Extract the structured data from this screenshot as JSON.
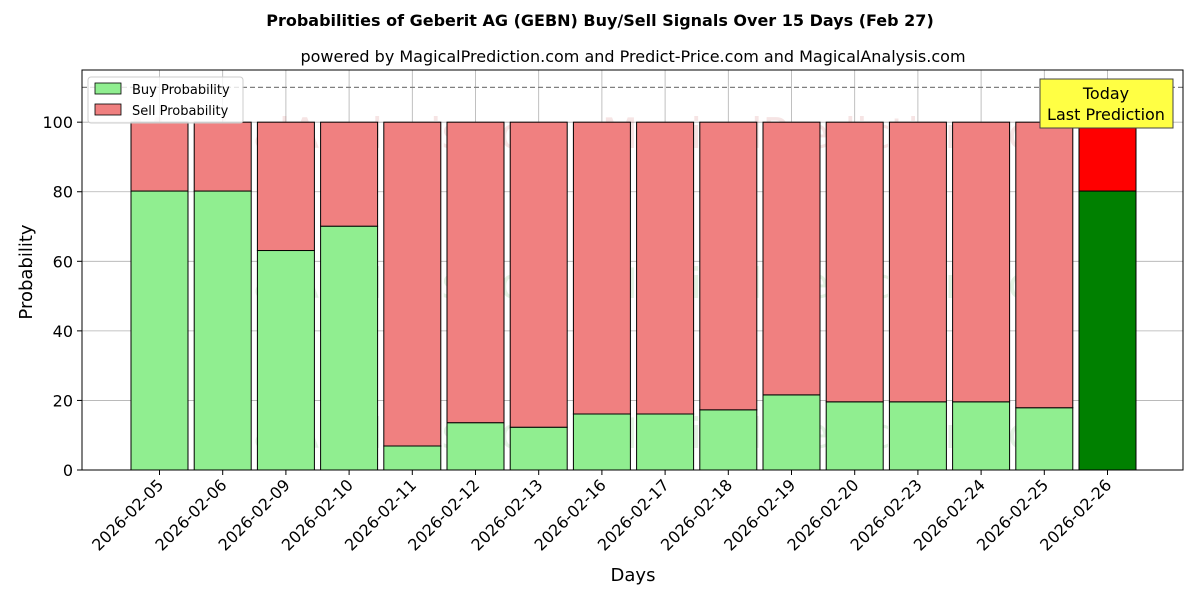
{
  "chart_data": {
    "type": "bar",
    "stacked": true,
    "title": "Probabilities of Geberit AG (GEBN) Buy/Sell Signals Over 15 Days (Feb 27)",
    "subtitle": "powered by MagicalPrediction.com and Predict-Price.com and MagicalAnalysis.com",
    "xlabel": "Days",
    "ylabel": "Probability",
    "ylim": [
      0,
      115
    ],
    "yticks": [
      0,
      20,
      40,
      60,
      80,
      100
    ],
    "grid": true,
    "legend_position": "top-left",
    "reference_line": 110,
    "categories": [
      "2026-02-05",
      "2026-02-06",
      "2026-02-09",
      "2026-02-10",
      "2026-02-11",
      "2026-02-12",
      "2026-02-13",
      "2026-02-16",
      "2026-02-17",
      "2026-02-18",
      "2026-02-19",
      "2026-02-20",
      "2026-02-23",
      "2026-02-24",
      "2026-02-25",
      "2026-02-26"
    ],
    "series": [
      {
        "name": "Buy Probability",
        "color": "#90ee90",
        "highlight_color": "#008000",
        "values": [
          80.2,
          80.2,
          63.1,
          70.1,
          6.9,
          13.6,
          12.3,
          16.1,
          16.1,
          17.3,
          21.6,
          19.6,
          19.6,
          19.6,
          17.9,
          80.2
        ]
      },
      {
        "name": "Sell Probability",
        "color": "#f08080",
        "highlight_color": "#ff0000",
        "values": [
          19.8,
          19.8,
          36.9,
          29.9,
          93.1,
          86.4,
          87.7,
          83.9,
          83.9,
          82.7,
          78.4,
          80.4,
          80.4,
          80.4,
          82.1,
          19.8
        ]
      }
    ],
    "annotation": {
      "lines": [
        "Today",
        "Last Prediction"
      ],
      "background": "#ffff44"
    },
    "watermarks": [
      "MagicalAnalysis.com",
      "MagicalPrediction.com"
    ]
  }
}
